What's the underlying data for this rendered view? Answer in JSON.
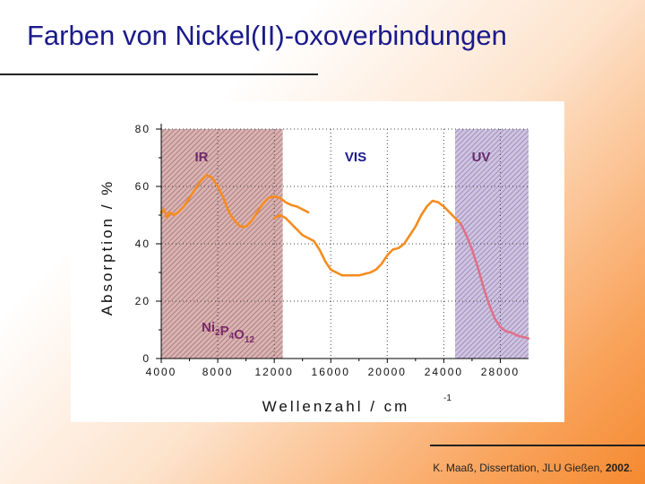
{
  "slide": {
    "title": "Farben von Nickel(II)-oxoverbindungen",
    "citation_prefix": "K. Maaß, Dissertation, JLU Gießen, ",
    "citation_year": "2002",
    "citation_suffix": "."
  },
  "colors": {
    "title": "#1a1a8c",
    "curve": "#f58c20",
    "uv_curve": "#e0708a",
    "ir_band_fill": "#c89a9a",
    "uv_band_fill": "#b4a6cc",
    "region_label": "#6a2a6a",
    "vis_label": "#1a1a8c",
    "compound_label": "#7a2a6a"
  },
  "chart_data": {
    "type": "line",
    "xlabel": "Wellenzahl / cm",
    "xlabel_sup": "-1",
    "ylabel": "Absorption / %",
    "xlim": [
      4000,
      30000
    ],
    "ylim": [
      0,
      80
    ],
    "xticks": [
      4000,
      8000,
      12000,
      16000,
      20000,
      24000,
      28000
    ],
    "xtick_labels": [
      "4000",
      "8000",
      "12000",
      "16000",
      "20000",
      "24000",
      "28000"
    ],
    "yticks": [
      0,
      20,
      40,
      60,
      80
    ],
    "ytick_labels": [
      "0",
      "20",
      "40",
      "60",
      "80"
    ],
    "regions": [
      {
        "label": "IR",
        "x0": 4000,
        "x1": 12600,
        "shaded": true
      },
      {
        "label": "VIS",
        "x0": 12600,
        "x1": 24800,
        "shaded": false
      },
      {
        "label": "UV",
        "x0": 24800,
        "x1": 30000,
        "shaded": true
      }
    ],
    "compound": {
      "base": [
        "Ni",
        "P",
        "O"
      ],
      "subs": [
        "2",
        "4",
        "12"
      ]
    },
    "series": [
      {
        "segment": "ir",
        "x": [
          4000,
          4200,
          4400,
          4600,
          4900,
          5200,
          5600,
          6000,
          6400,
          6800,
          7200,
          7600,
          8000,
          8400,
          8800,
          9200,
          9600,
          10000,
          10400,
          10800,
          11200,
          11600,
          12000,
          12400,
          12800,
          13200,
          13600,
          14000,
          14400
        ],
        "y": [
          51,
          52,
          49,
          51,
          50,
          51,
          53,
          56,
          59,
          62,
          64,
          63,
          60,
          56,
          51,
          48,
          46,
          46,
          48,
          51,
          54,
          56,
          56.5,
          56,
          54.5,
          53.5,
          53,
          52,
          51
        ]
      },
      {
        "segment": "vis",
        "x": [
          12000,
          12400,
          12800,
          13200,
          13600,
          14000,
          14400,
          14800,
          15200,
          15600,
          16000,
          16400,
          16800,
          17200,
          17600,
          18000,
          18400,
          18800,
          19200,
          19600,
          20000,
          20400,
          20800,
          21200,
          21600,
          22000,
          22400,
          22800,
          23200,
          23600,
          24000,
          24400,
          24800,
          25200
        ],
        "y": [
          49,
          50,
          49,
          47,
          45,
          43,
          42,
          41,
          38,
          34,
          31,
          30,
          29,
          29,
          29,
          29,
          29.5,
          30,
          31,
          33,
          36,
          38,
          38.5,
          40,
          43,
          46,
          50,
          53,
          55,
          54.5,
          53,
          51,
          49,
          47
        ]
      },
      {
        "segment": "uv",
        "x": [
          25200,
          25600,
          26000,
          26400,
          26800,
          27200,
          27600,
          28000,
          28400,
          28800,
          29200,
          29600,
          30000
        ],
        "y": [
          47,
          43,
          38,
          32,
          25,
          19,
          14,
          11,
          9.5,
          9,
          8,
          7.5,
          7
        ]
      }
    ]
  }
}
